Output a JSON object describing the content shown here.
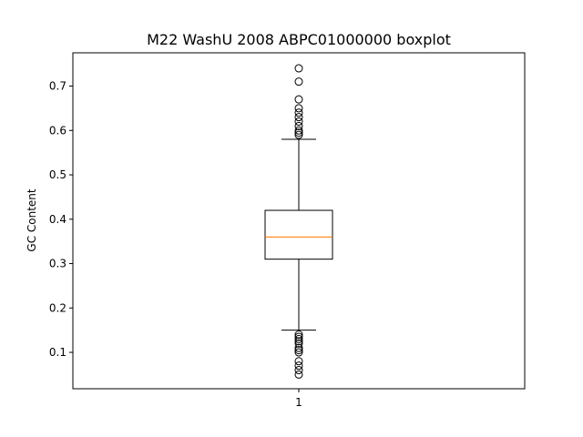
{
  "chart_data": {
    "type": "boxplot",
    "title": "M22 WashU 2008 ABPC01000000 boxplot",
    "xlabel": "",
    "ylabel": "GC Content",
    "categories": [
      "1"
    ],
    "ylim": [
      0.018,
      0.775
    ],
    "yticks": [
      0.1,
      0.2,
      0.3,
      0.4,
      0.5,
      0.6,
      0.7
    ],
    "ytick_labels": [
      "0.1",
      "0.2",
      "0.3",
      "0.4",
      "0.5",
      "0.6",
      "0.7"
    ],
    "grid": false,
    "box": {
      "whisker_low": 0.15,
      "q1": 0.31,
      "median": 0.36,
      "q3": 0.42,
      "whisker_high": 0.58,
      "outliers": [
        0.05,
        0.06,
        0.07,
        0.08,
        0.1,
        0.105,
        0.11,
        0.12,
        0.125,
        0.13,
        0.135,
        0.14,
        0.59,
        0.595,
        0.6,
        0.61,
        0.62,
        0.63,
        0.64,
        0.65,
        0.67,
        0.71,
        0.74
      ]
    },
    "colors": {
      "box": "#000000",
      "median": "#ff7f0e",
      "whisker": "#000000",
      "outlier": "#000000"
    }
  }
}
